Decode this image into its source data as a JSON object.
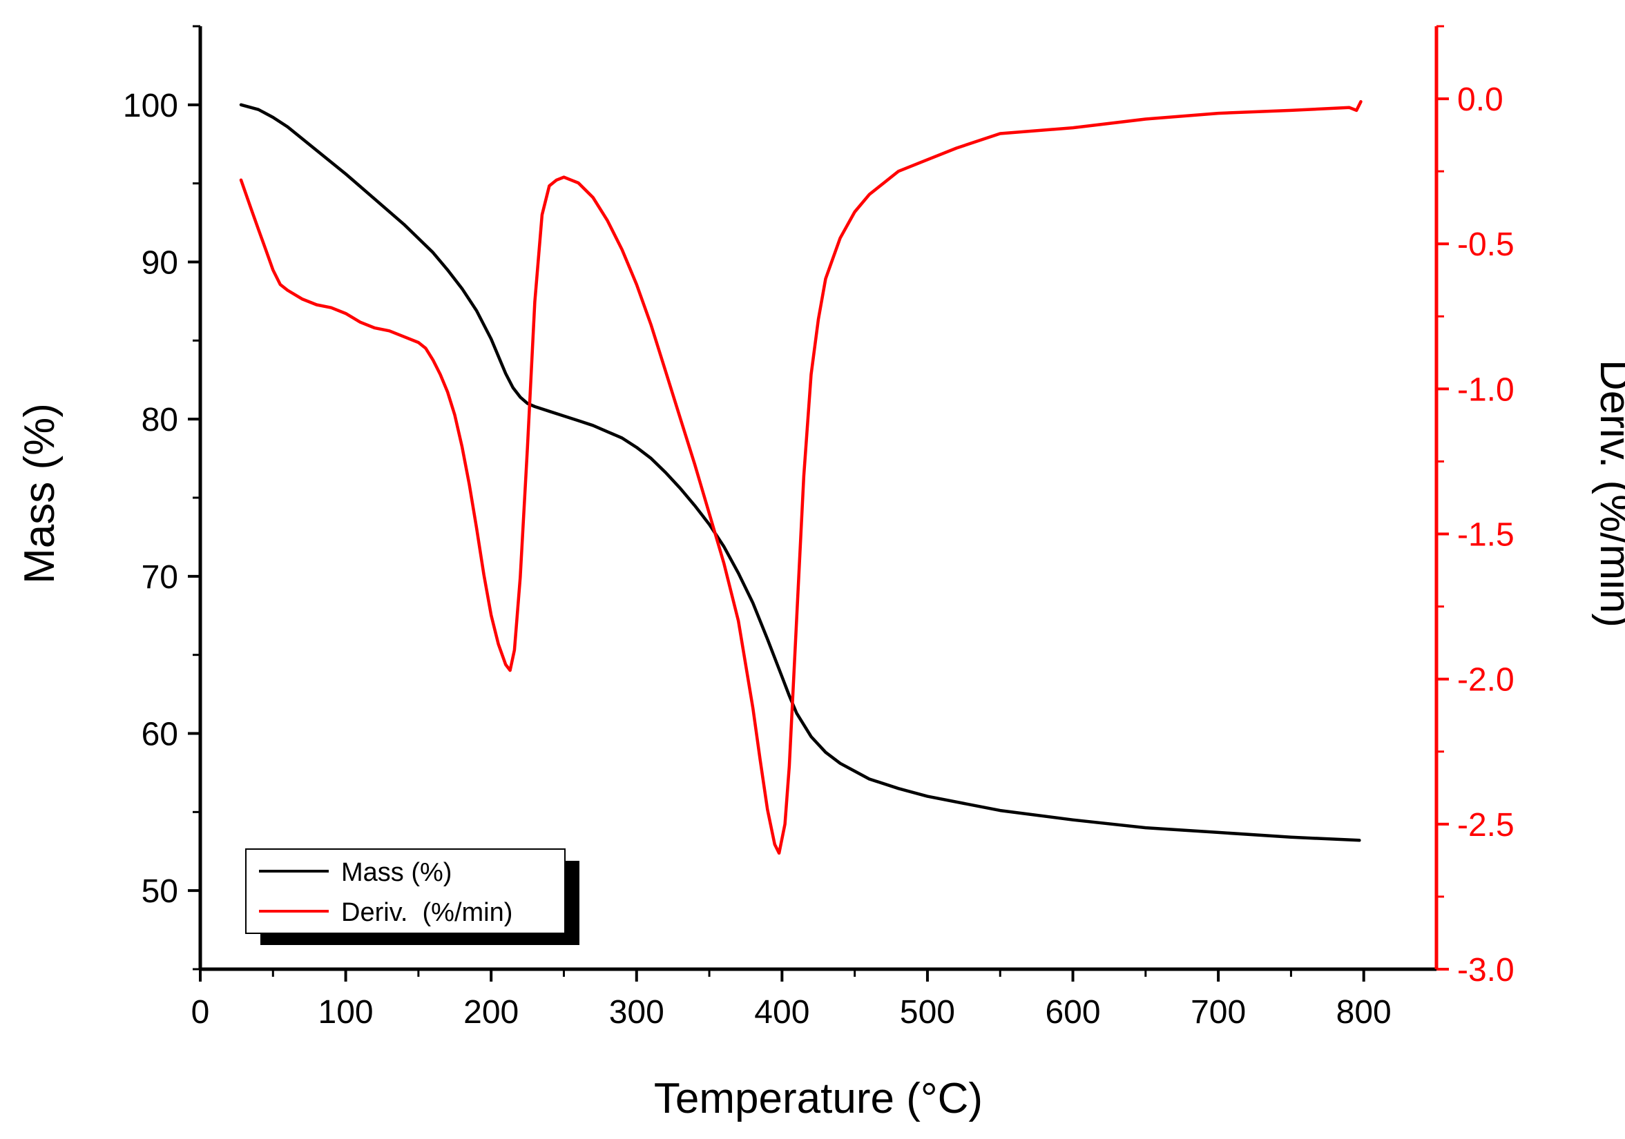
{
  "chart_data": {
    "type": "line",
    "xlabel": "Temperature (°C)",
    "ylabel_left": "Mass (%)",
    "ylabel_right": "Deriv.  (%/min)",
    "xlim": [
      0,
      850
    ],
    "ylim_left": [
      45,
      105
    ],
    "ylim_right": [
      -3.0,
      0.25
    ],
    "x_ticks": [
      "0",
      "100",
      "200",
      "300",
      "400",
      "500",
      "600",
      "700",
      "800"
    ],
    "y_left_ticks": [
      "50",
      "60",
      "70",
      "80",
      "90",
      "100"
    ],
    "y_right_ticks": [
      "0.0",
      "-0.5",
      "-1.0",
      "-1.5",
      "-2.0",
      "-2.5",
      "-3.0"
    ],
    "legend_position": "bottom-left",
    "colors": {
      "mass": "#000000",
      "deriv": "#ff0000",
      "axis_right": "#ff0000"
    },
    "series": [
      {
        "name": "Mass (%)",
        "axis": "left",
        "x": [
          28,
          40,
          50,
          60,
          80,
          100,
          120,
          140,
          160,
          170,
          180,
          190,
          200,
          205,
          210,
          215,
          220,
          225,
          230,
          240,
          250,
          260,
          270,
          280,
          290,
          300,
          310,
          320,
          330,
          340,
          350,
          360,
          370,
          380,
          390,
          400,
          405,
          410,
          420,
          430,
          440,
          450,
          460,
          480,
          500,
          550,
          600,
          650,
          700,
          750,
          797
        ],
        "values": [
          100.0,
          99.7,
          99.2,
          98.6,
          97.1,
          95.6,
          94.0,
          92.4,
          90.6,
          89.5,
          88.3,
          86.9,
          85.1,
          84.0,
          82.9,
          82.0,
          81.4,
          81.0,
          80.8,
          80.5,
          80.2,
          79.9,
          79.6,
          79.2,
          78.8,
          78.2,
          77.5,
          76.6,
          75.6,
          74.5,
          73.3,
          71.9,
          70.2,
          68.3,
          66.0,
          63.6,
          62.4,
          61.3,
          59.8,
          58.8,
          58.1,
          57.6,
          57.1,
          56.5,
          56.0,
          55.1,
          54.5,
          54.0,
          53.7,
          53.4,
          53.2
        ]
      },
      {
        "name": "Deriv.  (%/min)",
        "axis": "right",
        "x": [
          28,
          35,
          40,
          45,
          50,
          55,
          60,
          70,
          80,
          90,
          100,
          110,
          120,
          130,
          140,
          150,
          155,
          160,
          165,
          170,
          175,
          180,
          185,
          190,
          195,
          200,
          205,
          210,
          213,
          216,
          220,
          225,
          230,
          235,
          240,
          245,
          250,
          255,
          260,
          270,
          280,
          290,
          300,
          310,
          320,
          330,
          340,
          350,
          360,
          370,
          380,
          385,
          390,
          395,
          398,
          402,
          405,
          410,
          415,
          420,
          425,
          430,
          440,
          450,
          460,
          470,
          480,
          500,
          520,
          550,
          600,
          650,
          700,
          750,
          790,
          795,
          798
        ],
        "values": [
          -0.28,
          -0.38,
          -0.45,
          -0.52,
          -0.59,
          -0.64,
          -0.66,
          -0.69,
          -0.71,
          -0.72,
          -0.74,
          -0.77,
          -0.79,
          -0.8,
          -0.82,
          -0.84,
          -0.86,
          -0.9,
          -0.95,
          -1.01,
          -1.09,
          -1.2,
          -1.33,
          -1.48,
          -1.64,
          -1.78,
          -1.88,
          -1.95,
          -1.97,
          -1.9,
          -1.65,
          -1.2,
          -0.7,
          -0.4,
          -0.3,
          -0.28,
          -0.27,
          -0.28,
          -0.29,
          -0.34,
          -0.42,
          -0.52,
          -0.64,
          -0.78,
          -0.94,
          -1.1,
          -1.26,
          -1.43,
          -1.6,
          -1.8,
          -2.1,
          -2.28,
          -2.45,
          -2.57,
          -2.6,
          -2.5,
          -2.3,
          -1.8,
          -1.3,
          -0.95,
          -0.76,
          -0.62,
          -0.48,
          -0.39,
          -0.33,
          -0.29,
          -0.25,
          -0.21,
          -0.17,
          -0.12,
          -0.1,
          -0.07,
          -0.05,
          -0.04,
          -0.03,
          -0.04,
          -0.01
        ]
      }
    ]
  }
}
